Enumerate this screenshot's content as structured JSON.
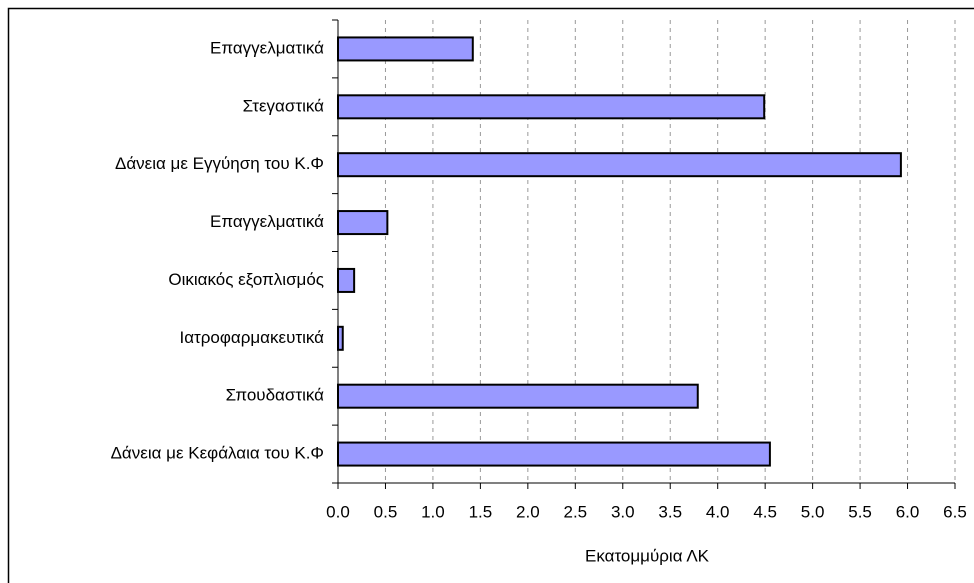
{
  "chart_data": {
    "type": "bar",
    "orientation": "horizontal",
    "x_label": "Εκατομμύρια ΛΚ",
    "categories": [
      "Επαγγελματικά",
      "Στεγαστικά",
      "Δάνεια με Εγγύηση του Κ.Φ",
      "Επαγγελματικά",
      "Οικιακός εξοπλισμός",
      "Ιατροφαρμακευτικά",
      "Σπουδαστικά",
      "Δάνεια με Κεφάλαια του Κ.Φ"
    ],
    "values": [
      1.42,
      4.49,
      5.93,
      0.52,
      0.17,
      0.05,
      3.79,
      4.55
    ],
    "color": "#9999ff",
    "xlim": [
      0,
      6.5
    ],
    "xticks": [
      {
        "value": 0,
        "label": "0.0"
      },
      0.5,
      {
        "value": 1,
        "label": "1.0"
      },
      1.5,
      {
        "value": 2,
        "label": "2.0"
      },
      2.5,
      {
        "value": 3,
        "label": "3.0"
      },
      3.5,
      {
        "value": 4,
        "label": "4.0"
      },
      4.5,
      {
        "value": 5,
        "label": "5.0"
      },
      5.5,
      {
        "value": 6,
        "label": "6.0"
      },
      6.5
    ],
    "grid": true
  }
}
